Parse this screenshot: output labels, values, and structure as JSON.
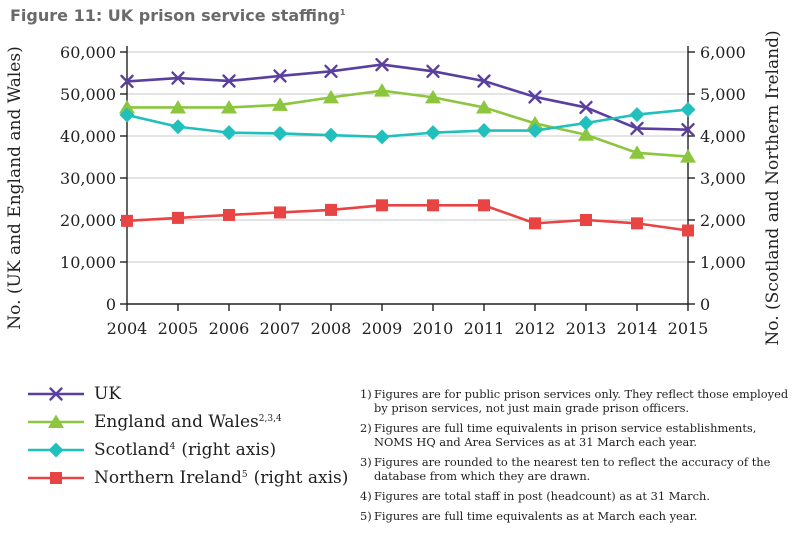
{
  "title": {
    "text": "Figure 11: UK prison service staffing",
    "note": "1"
  },
  "colors": {
    "uk": "#5b3f9e",
    "england_wales": "#8cc63e",
    "scotland": "#22c0bc",
    "northern_ireland": "#e84444",
    "axis": "#222222",
    "grid": "#c8c8c8"
  },
  "chart_data": {
    "type": "line",
    "x": [
      2004,
      2005,
      2006,
      2007,
      2008,
      2009,
      2010,
      2011,
      2012,
      2013,
      2014,
      2015
    ],
    "xlabel": "",
    "ylabel_left": "No. (UK and England and Wales)",
    "ylabel_right": "No. (Scotland and Northern Ireland)",
    "ylim_left": [
      0,
      60000
    ],
    "ylim_right": [
      0,
      6000
    ],
    "yticks_left": [
      "0",
      "10,000",
      "20,000",
      "30,000",
      "40,000",
      "50,000",
      "60,000"
    ],
    "yticks_right": [
      "0",
      "1,000",
      "2,000",
      "3,000",
      "4,000",
      "5,000",
      "6,000"
    ],
    "grid": "horizontal",
    "legend_position": "bottom-left",
    "series": [
      {
        "name": "UK",
        "axis": "left",
        "marker": "x",
        "color_key": "uk",
        "values": [
          53000,
          53800,
          53100,
          54300,
          55400,
          57000,
          55400,
          53100,
          49300,
          46800,
          41800,
          41500
        ]
      },
      {
        "name": "England and Wales",
        "axis": "left",
        "marker": "triangle",
        "color_key": "england_wales",
        "values": [
          46800,
          46800,
          46800,
          47400,
          49200,
          50800,
          49200,
          46800,
          43000,
          40300,
          36000,
          35100
        ]
      },
      {
        "name": "Scotland",
        "axis": "right",
        "marker": "diamond",
        "color_key": "scotland",
        "values": [
          4500,
          4220,
          4080,
          4060,
          4020,
          3980,
          4080,
          4130,
          4130,
          4310,
          4510,
          4630
        ]
      },
      {
        "name": "Northern Ireland",
        "axis": "right",
        "marker": "square",
        "color_key": "northern_ireland",
        "values": [
          1980,
          2050,
          2120,
          2180,
          2240,
          2350,
          2350,
          2350,
          1920,
          2000,
          1920,
          1750
        ]
      }
    ]
  },
  "legend": [
    {
      "label": "UK",
      "note": "",
      "suffix": "",
      "marker": "x",
      "color_key": "uk"
    },
    {
      "label": "England and Wales",
      "note": "2,3,4",
      "suffix": "",
      "marker": "triangle",
      "color_key": "england_wales"
    },
    {
      "label": "Scotland",
      "note": "4",
      "suffix": "(right axis)",
      "marker": "diamond",
      "color_key": "scotland"
    },
    {
      "label": "Northern Ireland",
      "note": "5",
      "suffix": "(right axis)",
      "marker": "square",
      "color_key": "northern_ireland"
    }
  ],
  "footnotes": [
    {
      "num": "1)",
      "text": "Figures are for public prison services only. They reflect those employed by prison services, not just main grade prison officers."
    },
    {
      "num": "2)",
      "text": "Figures are full time equivalents in prison service establishments, NOMS HQ and Area Services as at 31 March each year."
    },
    {
      "num": "3)",
      "text": "Figures are rounded to the nearest ten to reflect the accuracy of the database from which they are drawn."
    },
    {
      "num": "4)",
      "text": "Figures are total staff in post (headcount) as at 31 March."
    },
    {
      "num": "5)",
      "text": "Figures are full time equivalents as at March each year."
    }
  ]
}
